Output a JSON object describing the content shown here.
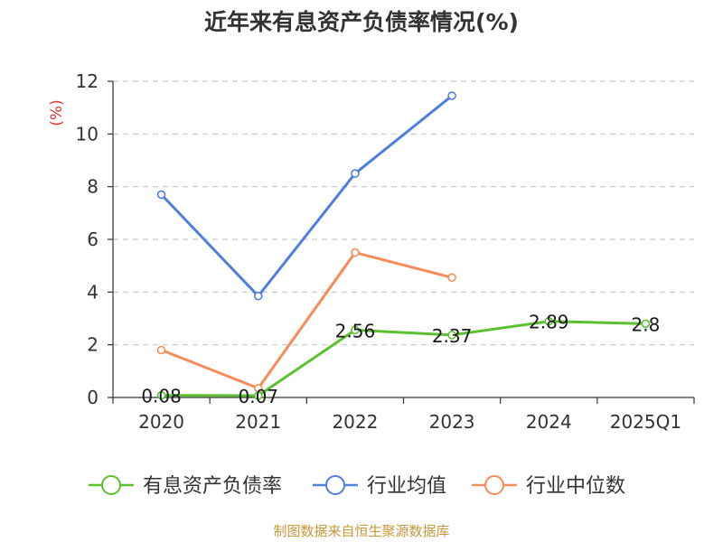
{
  "chart_data": {
    "type": "line",
    "title": "近年来有息资产负债率情况(%)",
    "ylabel": "(%)",
    "xlabel": "",
    "categories": [
      "2020",
      "2021",
      "2022",
      "2023",
      "2024",
      "2025Q1"
    ],
    "ylim": [
      0,
      12
    ],
    "yticks": [
      0,
      2,
      4,
      6,
      8,
      10,
      12
    ],
    "grid": true,
    "legend_position": "bottom",
    "series": [
      {
        "name": "有息资产负债率",
        "color": "#5cc12e",
        "values": [
          0.08,
          0.07,
          2.56,
          2.37,
          2.89,
          2.8
        ],
        "labels": [
          "0.08",
          "0.07",
          "2.56",
          "2.37",
          "2.89",
          "2.8"
        ]
      },
      {
        "name": "行业均值",
        "color": "#4e7fdc",
        "values": [
          7.7,
          3.85,
          8.5,
          11.45,
          null,
          null
        ]
      },
      {
        "name": "行业中位数",
        "color": "#f58c5a",
        "values": [
          1.8,
          0.35,
          5.5,
          4.55,
          null,
          null
        ]
      }
    ]
  },
  "source": "制图数据来自恒生聚源数据库"
}
